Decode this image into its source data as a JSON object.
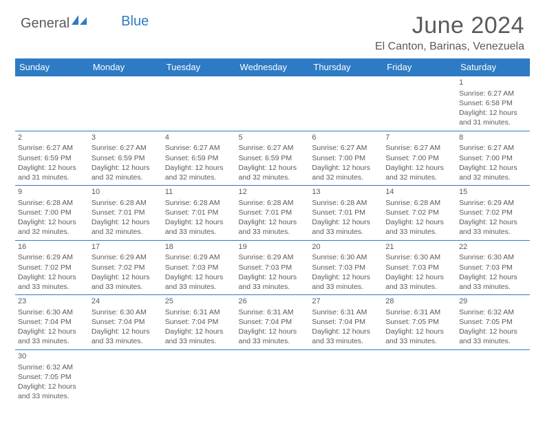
{
  "logo": {
    "text1": "General",
    "text2": "Blue",
    "icon_color": "#2d7bc4"
  },
  "header": {
    "title": "June 2024",
    "location": "El Canton, Barinas, Venezuela"
  },
  "colors": {
    "header_bg": "#2d7bc4",
    "header_text": "#ffffff",
    "body_text": "#5a5a5a",
    "border": "#2d7bc4",
    "background": "#ffffff"
  },
  "day_names": [
    "Sunday",
    "Monday",
    "Tuesday",
    "Wednesday",
    "Thursday",
    "Friday",
    "Saturday"
  ],
  "weeks": [
    [
      null,
      null,
      null,
      null,
      null,
      null,
      {
        "day": "1",
        "sunrise": "Sunrise: 6:27 AM",
        "sunset": "Sunset: 6:58 PM",
        "daylight1": "Daylight: 12 hours",
        "daylight2": "and 31 minutes."
      }
    ],
    [
      {
        "day": "2",
        "sunrise": "Sunrise: 6:27 AM",
        "sunset": "Sunset: 6:59 PM",
        "daylight1": "Daylight: 12 hours",
        "daylight2": "and 31 minutes."
      },
      {
        "day": "3",
        "sunrise": "Sunrise: 6:27 AM",
        "sunset": "Sunset: 6:59 PM",
        "daylight1": "Daylight: 12 hours",
        "daylight2": "and 32 minutes."
      },
      {
        "day": "4",
        "sunrise": "Sunrise: 6:27 AM",
        "sunset": "Sunset: 6:59 PM",
        "daylight1": "Daylight: 12 hours",
        "daylight2": "and 32 minutes."
      },
      {
        "day": "5",
        "sunrise": "Sunrise: 6:27 AM",
        "sunset": "Sunset: 6:59 PM",
        "daylight1": "Daylight: 12 hours",
        "daylight2": "and 32 minutes."
      },
      {
        "day": "6",
        "sunrise": "Sunrise: 6:27 AM",
        "sunset": "Sunset: 7:00 PM",
        "daylight1": "Daylight: 12 hours",
        "daylight2": "and 32 minutes."
      },
      {
        "day": "7",
        "sunrise": "Sunrise: 6:27 AM",
        "sunset": "Sunset: 7:00 PM",
        "daylight1": "Daylight: 12 hours",
        "daylight2": "and 32 minutes."
      },
      {
        "day": "8",
        "sunrise": "Sunrise: 6:27 AM",
        "sunset": "Sunset: 7:00 PM",
        "daylight1": "Daylight: 12 hours",
        "daylight2": "and 32 minutes."
      }
    ],
    [
      {
        "day": "9",
        "sunrise": "Sunrise: 6:28 AM",
        "sunset": "Sunset: 7:00 PM",
        "daylight1": "Daylight: 12 hours",
        "daylight2": "and 32 minutes."
      },
      {
        "day": "10",
        "sunrise": "Sunrise: 6:28 AM",
        "sunset": "Sunset: 7:01 PM",
        "daylight1": "Daylight: 12 hours",
        "daylight2": "and 32 minutes."
      },
      {
        "day": "11",
        "sunrise": "Sunrise: 6:28 AM",
        "sunset": "Sunset: 7:01 PM",
        "daylight1": "Daylight: 12 hours",
        "daylight2": "and 33 minutes."
      },
      {
        "day": "12",
        "sunrise": "Sunrise: 6:28 AM",
        "sunset": "Sunset: 7:01 PM",
        "daylight1": "Daylight: 12 hours",
        "daylight2": "and 33 minutes."
      },
      {
        "day": "13",
        "sunrise": "Sunrise: 6:28 AM",
        "sunset": "Sunset: 7:01 PM",
        "daylight1": "Daylight: 12 hours",
        "daylight2": "and 33 minutes."
      },
      {
        "day": "14",
        "sunrise": "Sunrise: 6:28 AM",
        "sunset": "Sunset: 7:02 PM",
        "daylight1": "Daylight: 12 hours",
        "daylight2": "and 33 minutes."
      },
      {
        "day": "15",
        "sunrise": "Sunrise: 6:29 AM",
        "sunset": "Sunset: 7:02 PM",
        "daylight1": "Daylight: 12 hours",
        "daylight2": "and 33 minutes."
      }
    ],
    [
      {
        "day": "16",
        "sunrise": "Sunrise: 6:29 AM",
        "sunset": "Sunset: 7:02 PM",
        "daylight1": "Daylight: 12 hours",
        "daylight2": "and 33 minutes."
      },
      {
        "day": "17",
        "sunrise": "Sunrise: 6:29 AM",
        "sunset": "Sunset: 7:02 PM",
        "daylight1": "Daylight: 12 hours",
        "daylight2": "and 33 minutes."
      },
      {
        "day": "18",
        "sunrise": "Sunrise: 6:29 AM",
        "sunset": "Sunset: 7:03 PM",
        "daylight1": "Daylight: 12 hours",
        "daylight2": "and 33 minutes."
      },
      {
        "day": "19",
        "sunrise": "Sunrise: 6:29 AM",
        "sunset": "Sunset: 7:03 PM",
        "daylight1": "Daylight: 12 hours",
        "daylight2": "and 33 minutes."
      },
      {
        "day": "20",
        "sunrise": "Sunrise: 6:30 AM",
        "sunset": "Sunset: 7:03 PM",
        "daylight1": "Daylight: 12 hours",
        "daylight2": "and 33 minutes."
      },
      {
        "day": "21",
        "sunrise": "Sunrise: 6:30 AM",
        "sunset": "Sunset: 7:03 PM",
        "daylight1": "Daylight: 12 hours",
        "daylight2": "and 33 minutes."
      },
      {
        "day": "22",
        "sunrise": "Sunrise: 6:30 AM",
        "sunset": "Sunset: 7:03 PM",
        "daylight1": "Daylight: 12 hours",
        "daylight2": "and 33 minutes."
      }
    ],
    [
      {
        "day": "23",
        "sunrise": "Sunrise: 6:30 AM",
        "sunset": "Sunset: 7:04 PM",
        "daylight1": "Daylight: 12 hours",
        "daylight2": "and 33 minutes."
      },
      {
        "day": "24",
        "sunrise": "Sunrise: 6:30 AM",
        "sunset": "Sunset: 7:04 PM",
        "daylight1": "Daylight: 12 hours",
        "daylight2": "and 33 minutes."
      },
      {
        "day": "25",
        "sunrise": "Sunrise: 6:31 AM",
        "sunset": "Sunset: 7:04 PM",
        "daylight1": "Daylight: 12 hours",
        "daylight2": "and 33 minutes."
      },
      {
        "day": "26",
        "sunrise": "Sunrise: 6:31 AM",
        "sunset": "Sunset: 7:04 PM",
        "daylight1": "Daylight: 12 hours",
        "daylight2": "and 33 minutes."
      },
      {
        "day": "27",
        "sunrise": "Sunrise: 6:31 AM",
        "sunset": "Sunset: 7:04 PM",
        "daylight1": "Daylight: 12 hours",
        "daylight2": "and 33 minutes."
      },
      {
        "day": "28",
        "sunrise": "Sunrise: 6:31 AM",
        "sunset": "Sunset: 7:05 PM",
        "daylight1": "Daylight: 12 hours",
        "daylight2": "and 33 minutes."
      },
      {
        "day": "29",
        "sunrise": "Sunrise: 6:32 AM",
        "sunset": "Sunset: 7:05 PM",
        "daylight1": "Daylight: 12 hours",
        "daylight2": "and 33 minutes."
      }
    ],
    [
      {
        "day": "30",
        "sunrise": "Sunrise: 6:32 AM",
        "sunset": "Sunset: 7:05 PM",
        "daylight1": "Daylight: 12 hours",
        "daylight2": "and 33 minutes."
      },
      null,
      null,
      null,
      null,
      null,
      null
    ]
  ]
}
